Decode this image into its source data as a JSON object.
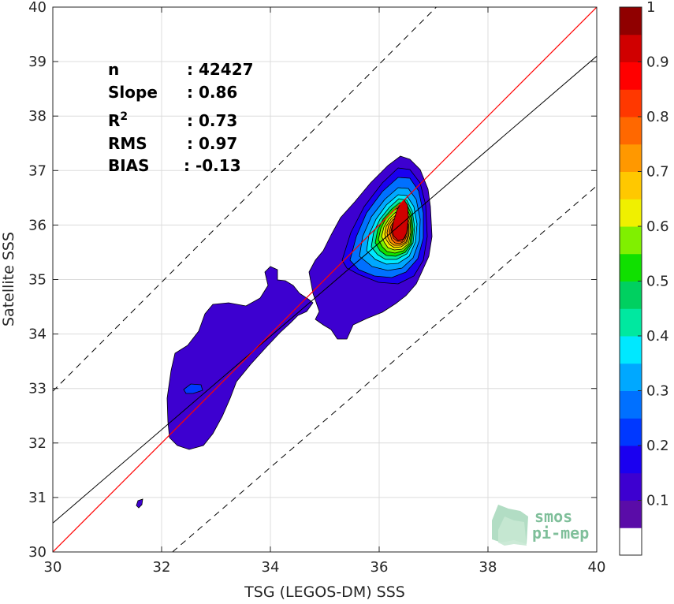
{
  "chart_data": {
    "type": "contour-density",
    "xlabel": "TSG (LEGOS-DM) SSS",
    "ylabel": "Satellite SSS",
    "xlim": [
      30,
      40
    ],
    "ylim": [
      30,
      40
    ],
    "xticks": [
      30,
      32,
      34,
      36,
      38,
      40
    ],
    "yticks": [
      30,
      31,
      32,
      33,
      34,
      35,
      36,
      37,
      38,
      39,
      40
    ],
    "grid": true,
    "stats": [
      {
        "label": "n",
        "value": ": 42427"
      },
      {
        "label": "Slope",
        "value": ": 0.86"
      },
      {
        "label": "R",
        "sup": "2",
        "value": ": 0.73"
      },
      {
        "label": "RMS",
        "value": ": 0.97"
      },
      {
        "label": "BIAS",
        "value": ": -0.13"
      }
    ],
    "lines": {
      "identity": {
        "slope": 1,
        "intercept": 0,
        "color": "#ff0000"
      },
      "regression": {
        "slope": 0.86,
        "x_at_30": 30,
        "y_at_30": 30.53,
        "x_at_40": 40,
        "y_at_40": 39.1,
        "color": "#000000"
      },
      "upper_bound": {
        "y_at_30": 32.95,
        "x_at_40": 37.05,
        "style": "dashed"
      },
      "lower_bound": {
        "x_at_30": 32.2,
        "y_at_40": 36.72,
        "style": "dashed"
      }
    },
    "peak": {
      "x": 36.35,
      "y": 36.0
    },
    "colorbar": {
      "ticks": [
        0.1,
        0.2,
        0.3,
        0.4,
        0.5,
        0.6,
        0.7,
        0.8,
        0.9,
        1
      ],
      "tick_labels": [
        "0.1",
        "0.2",
        "0.3",
        "0.4",
        "0.5",
        "0.6",
        "0.7",
        "0.8",
        "0.9",
        "1"
      ],
      "range": [
        0,
        1
      ],
      "lowest_band_top": 0.05,
      "colors": [
        "#5a0ca8",
        "#3d00d0",
        "#1a00f0",
        "#0038ff",
        "#0070ff",
        "#00a8ff",
        "#00e8ff",
        "#00e8a0",
        "#00d060",
        "#10e000",
        "#80f000",
        "#f0f000",
        "#ffc800",
        "#ff9800",
        "#ff6800",
        "#ff3800",
        "#ff0000",
        "#d00000",
        "#900000"
      ]
    }
  },
  "watermark": {
    "line1": "smos",
    "line2": "pi-mep"
  }
}
